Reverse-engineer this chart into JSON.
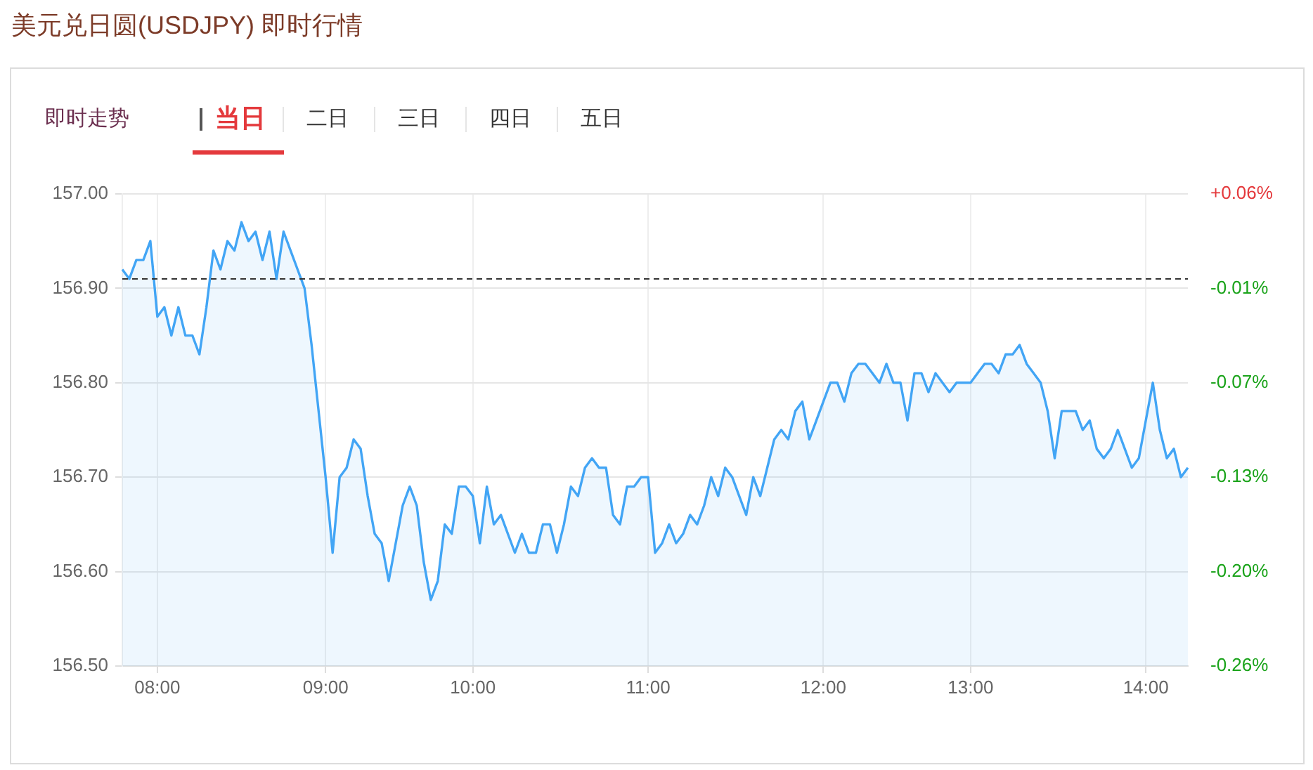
{
  "chart_data": {
    "type": "area",
    "title": "美元兑日圆(USDJPY) 即时行情",
    "subtitle": "即时走势",
    "annotations": [
      "当日",
      "二日",
      "三日",
      "四日",
      "五日"
    ],
    "categories": [
      null,
      null,
      null,
      null,
      null,
      "08:00",
      null,
      null,
      null,
      null,
      null,
      null,
      null,
      null,
      null,
      null,
      null,
      null,
      null,
      null,
      null,
      null,
      null,
      null,
      null,
      null,
      null,
      null,
      null,
      "09:00",
      null,
      null,
      null,
      null,
      null,
      null,
      null,
      null,
      null,
      null,
      null,
      null,
      null,
      null,
      null,
      null,
      null,
      null,
      null,
      null,
      "10:00",
      null,
      null,
      null,
      null,
      null,
      null,
      null,
      null,
      null,
      null,
      null,
      null,
      null,
      null,
      null,
      null,
      null,
      null,
      null,
      null,
      null,
      null,
      null,
      null,
      "11:00",
      null,
      null,
      null,
      null,
      null,
      null,
      null,
      null,
      null,
      null,
      null,
      null,
      null,
      null,
      null,
      null,
      null,
      null,
      null,
      null,
      null,
      null,
      null,
      null,
      "12:00",
      null,
      null,
      null,
      null,
      null,
      null,
      null,
      null,
      null,
      null,
      null,
      null,
      null,
      null,
      null,
      null,
      null,
      null,
      null,
      null,
      "13:00",
      null,
      null,
      null,
      null,
      null,
      null,
      null,
      null,
      null,
      null,
      null,
      null,
      null,
      null,
      null,
      null,
      null,
      null,
      null,
      null,
      null,
      null,
      null,
      null,
      "14:00",
      null,
      null,
      null,
      null,
      null,
      null
    ],
    "series": [
      {
        "color": "#42a5f5",
        "values": [
          156.92,
          156.91,
          156.93,
          156.93,
          156.95,
          156.87,
          156.88,
          156.85,
          156.88,
          156.85,
          156.85,
          156.83,
          156.88,
          156.94,
          156.92,
          156.95,
          156.94,
          156.97,
          156.95,
          156.96,
          156.93,
          156.96,
          156.91,
          156.96,
          156.94,
          156.92,
          156.9,
          156.84,
          156.77,
          156.7,
          156.62,
          156.7,
          156.71,
          156.74,
          156.73,
          156.68,
          156.64,
          156.63,
          156.59,
          156.63,
          156.67,
          156.69,
          156.67,
          156.61,
          156.57,
          156.59,
          156.65,
          156.64,
          156.69,
          156.69,
          156.68,
          156.63,
          156.69,
          156.65,
          156.66,
          156.64,
          156.62,
          156.64,
          156.62,
          156.62,
          156.65,
          156.65,
          156.62,
          156.65,
          156.69,
          156.68,
          156.71,
          156.72,
          156.71,
          156.71,
          156.66,
          156.65,
          156.69,
          156.69,
          156.7,
          156.7,
          156.62,
          156.63,
          156.65,
          156.63,
          156.64,
          156.66,
          156.65,
          156.67,
          156.7,
          156.68,
          156.71,
          156.7,
          156.68,
          156.66,
          156.7,
          156.68,
          156.71,
          156.74,
          156.75,
          156.74,
          156.77,
          156.78,
          156.74,
          156.76,
          156.78,
          156.8,
          156.8,
          156.78,
          156.81,
          156.82,
          156.82,
          156.81,
          156.8,
          156.82,
          156.8,
          156.8,
          156.76,
          156.81,
          156.81,
          156.79,
          156.81,
          156.8,
          156.79,
          156.8,
          156.8,
          156.8,
          156.81,
          156.82,
          156.82,
          156.81,
          156.83,
          156.83,
          156.84,
          156.82,
          156.81,
          156.8,
          156.77,
          156.72,
          156.77,
          156.77,
          156.77,
          156.75,
          156.76,
          156.73,
          156.72,
          156.73,
          156.75,
          156.73,
          156.71,
          156.72,
          156.76,
          156.8,
          156.75,
          156.72,
          156.73,
          156.7,
          156.71
        ]
      }
    ],
    "ylim": [
      156.5,
      157.0
    ],
    "yticks": [
      {
        "value": 156.5,
        "label": "156.50"
      },
      {
        "value": 156.6,
        "label": "156.60"
      },
      {
        "value": 156.7,
        "label": "156.70"
      },
      {
        "value": 156.8,
        "label": "156.80"
      },
      {
        "value": 156.9,
        "label": "156.90"
      },
      {
        "value": 157.0,
        "label": "157.00"
      }
    ],
    "y2lim": [
      -0.2613,
      0.0574
    ],
    "y2ticks": [
      {
        "value": -0.2613,
        "label": "-0.26%"
      },
      {
        "value": -0.1976,
        "label": "-0.20%"
      },
      {
        "value": -0.1338,
        "label": "-0.13%"
      },
      {
        "value": -0.0701,
        "label": "-0.07%"
      },
      {
        "value": -0.0064,
        "label": "-0.01%"
      },
      {
        "value": 0.0574,
        "label": "+0.06%"
      }
    ],
    "ref_lines": [
      {
        "axis": "y",
        "value": 156.91,
        "line_style": "dashed",
        "color": "#333333"
      }
    ],
    "grid": true
  }
}
